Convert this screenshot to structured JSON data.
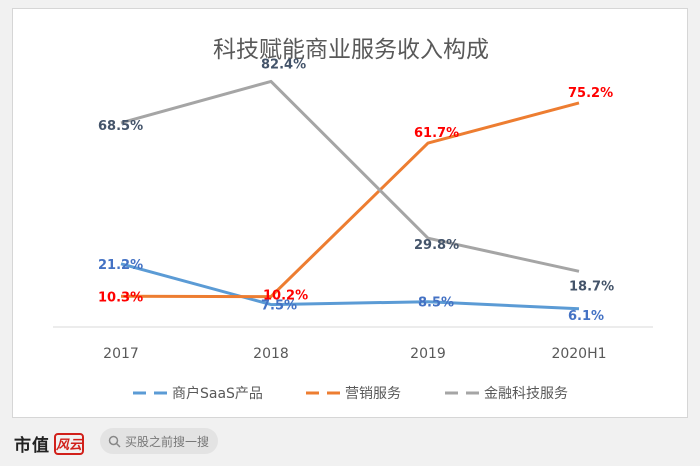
{
  "chart_data": {
    "type": "line",
    "title": "科技赋能商业服务收入构成",
    "categories": [
      "2017",
      "2018",
      "2019",
      "2020H1"
    ],
    "ylim": [
      0,
      100
    ],
    "series": [
      {
        "name": "商户SaaS产品",
        "color": "#5b9bd5",
        "values": [
          21.2,
          7.5,
          8.5,
          6.1
        ],
        "labels": [
          "21.2%",
          "7.5%",
          "8.5%",
          "6.1%"
        ],
        "label_color": "#4472c4"
      },
      {
        "name": "营销服务",
        "color": "#ed7d31",
        "values": [
          10.3,
          10.2,
          61.7,
          75.2
        ],
        "labels": [
          "10.3%",
          "10.2%",
          "61.7%",
          "75.2%"
        ],
        "label_color": "#ff0000"
      },
      {
        "name": "金融科技服务",
        "color": "#a5a5a5",
        "values": [
          68.5,
          82.4,
          29.8,
          18.7
        ],
        "labels": [
          "68.5%",
          "82.4%",
          "29.8%",
          "18.7%"
        ],
        "label_color": "#44546a"
      }
    ]
  },
  "footer": {
    "brand": "市值",
    "logo_text": "风云",
    "search_placeholder": "买股之前搜一搜",
    "icons": [
      "search-icon"
    ]
  }
}
